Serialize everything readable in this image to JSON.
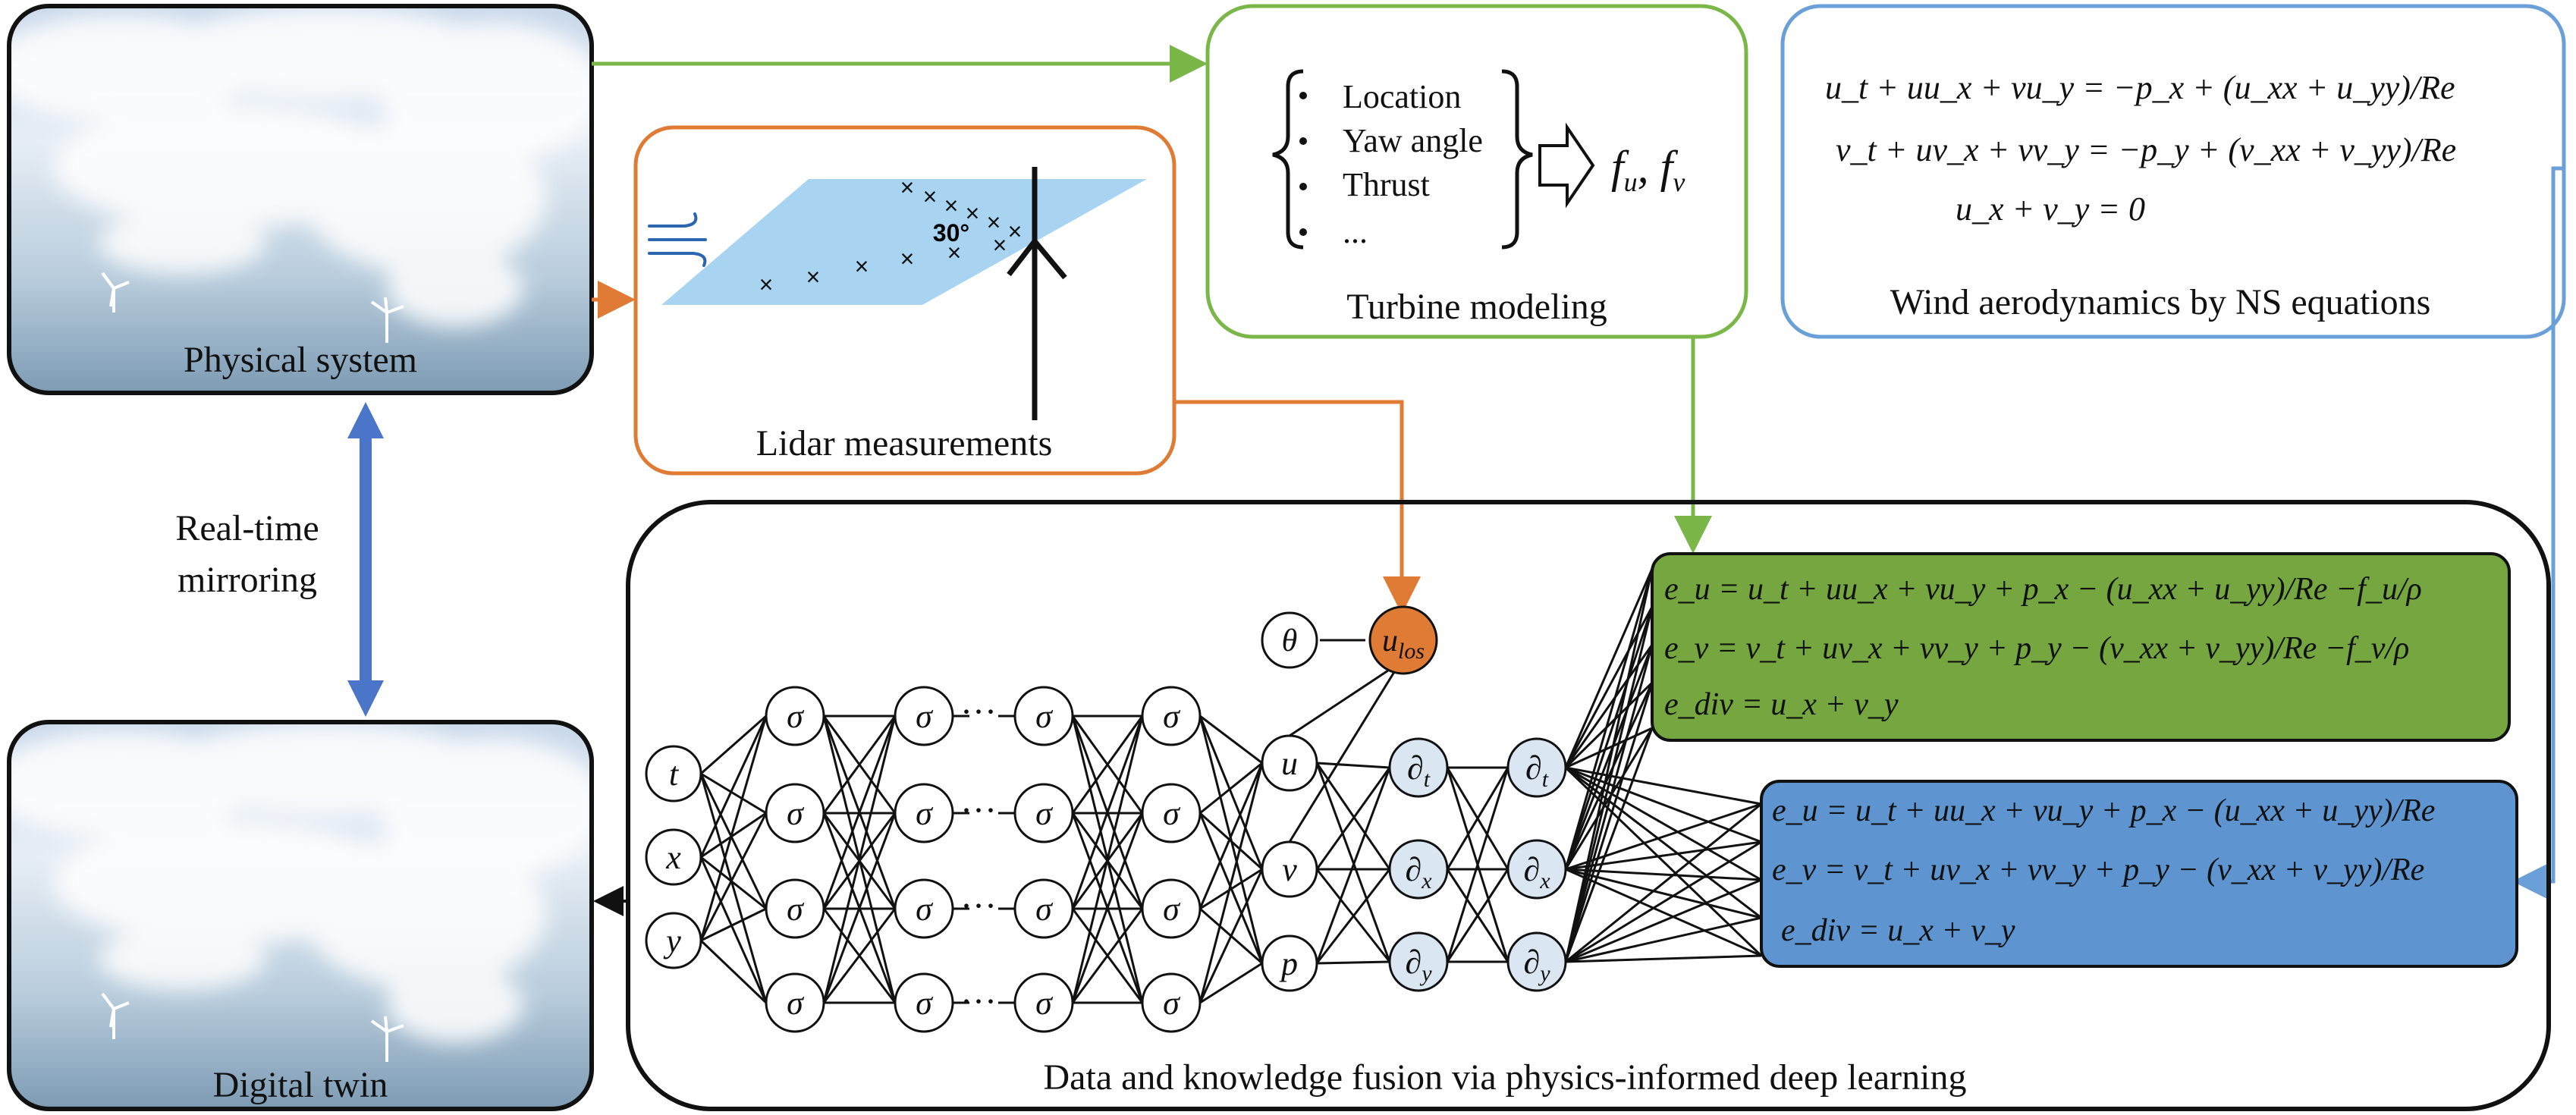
{
  "colors": {
    "green": "#7ab648",
    "orange": "#e07b35",
    "blue_line": "#6a9fd8",
    "blue_fill": "#5e95d0",
    "green_fill": "#76a640",
    "arrow_blue": "#4a75c8",
    "node_blue": "#dbe6f3",
    "los_orange": "#e07b35",
    "lidar_plane": "#a8d4f2"
  },
  "physical": {
    "label": "Physical system"
  },
  "twin": {
    "label": "Digital twin"
  },
  "mirroring": {
    "line1": "Real-time",
    "line2": "mirroring"
  },
  "lidar": {
    "label": "Lidar measurements",
    "angle": "30°"
  },
  "turbine": {
    "label": "Turbine modeling",
    "items": [
      "Location",
      "Yaw angle",
      "Thrust",
      "..."
    ],
    "output": "f",
    "output_sub_u": "u",
    "output_sep": ", f",
    "output_sub_v": "v"
  },
  "ns": {
    "label": "Wind aerodynamics by NS equations",
    "eq1": "u_t + uu_x + vu_y = −p_x + (u_xx + u_yy)/Re",
    "eq2": "v_t + uv_x + vv_y = −p_y + (v_xx + v_yy)/Re",
    "eq3": "u_x + v_y = 0"
  },
  "network": {
    "inputs": [
      "t",
      "x",
      "y"
    ],
    "sigma": "σ",
    "dots": "···",
    "outputs": [
      "u",
      "v",
      "p"
    ],
    "theta": "θ",
    "los": "u",
    "los_sub": "los",
    "partial": "∂",
    "partial_subs": [
      "t",
      "x",
      "y"
    ]
  },
  "residual_green": {
    "eq1": "e_u = u_t + uu_x + vu_y + p_x − (u_xx + u_yy)/Re −f_u/ρ",
    "eq2": "e_v = v_t + uv_x + vv_y + p_y − (v_xx + v_yy)/Re −f_v/ρ",
    "eq3": "e_div = u_x + v_y"
  },
  "residual_blue": {
    "eq1": "e_u = u_t + uu_x + vu_y + p_x − (u_xx + u_yy)/Re",
    "eq2": "e_v = v_t + uv_x + vv_y + p_y − (v_xx + v_yy)/Re",
    "eq3": "e_div = u_x + v_y"
  },
  "fusion": {
    "label": "Data and knowledge fusion via physics-informed deep learning"
  }
}
